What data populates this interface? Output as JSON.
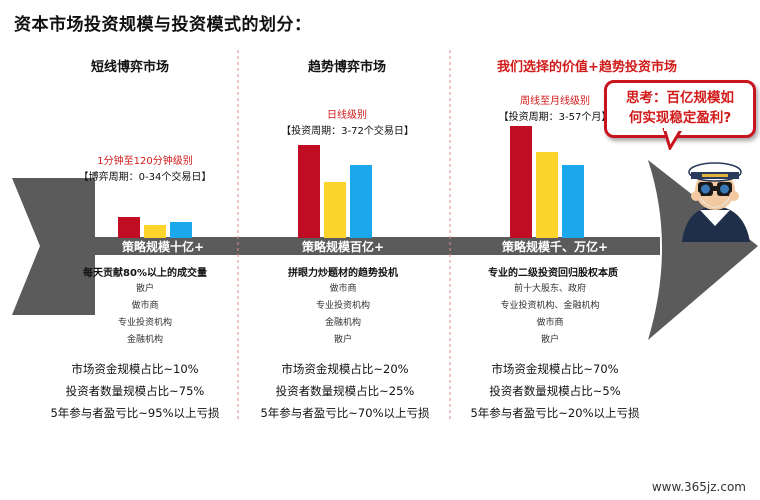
{
  "title": "资本市场投资规模与投资模式的划分：",
  "columns": [
    {
      "title": "短线博弈市场",
      "title_color": "black",
      "level": "1分钟至120分钟级别",
      "period": "【博弈周期：0-34个交易日】",
      "axis_label": "策略规模十亿+",
      "feature": "每天贡献80%以上的成交量",
      "participants": [
        "散户",
        "做市商",
        "专业投资机构",
        "金融机构"
      ],
      "stats": [
        "市场资金规模占比~10%",
        "投资者数量规模占比~75%",
        "5年参与者盈亏比~95%以上亏损"
      ]
    },
    {
      "title": "趋势博弈市场",
      "title_color": "black",
      "level": "日线级别",
      "period": "【投资周期：3-72个交易日】",
      "axis_label": "策略规模百亿+",
      "feature": "拼眼力炒题材的趋势投机",
      "participants": [
        "做市商",
        "专业投资机构",
        "金融机构",
        "散户"
      ],
      "stats": [
        "市场资金规模占比~20%",
        "投资者数量规模占比~25%",
        "5年参与者盈亏比~70%以上亏损"
      ]
    },
    {
      "title": "我们选择的价值+趋势投资市场",
      "title_color": "red",
      "level": "周线至月线级别",
      "period": "【投资周期：3-57个月】",
      "axis_label": "策略规模千、万亿+",
      "feature": "专业的二级投资回归股权本质",
      "participants": [
        "前十大股东、政府",
        "专业投资机构、金融机构",
        "做市商",
        "散户"
      ],
      "stats": [
        "市场资金规模占比~70%",
        "投资者数量规模占比~5%",
        "5年参与者盈亏比~20%以上亏损"
      ]
    }
  ],
  "bar_colors": [
    "#c00d23",
    "#fdd42c",
    "#1aa7ec"
  ],
  "bar_levels": [
    [
      0.4,
      0.25,
      0.31
    ],
    [
      0.93,
      0.56,
      0.73
    ],
    [
      1.0,
      0.77,
      0.65
    ]
  ],
  "callout": {
    "line1": "思考：百亿规模如",
    "line2": "何实现稳定盈利?"
  },
  "watermark": "www.365jz.com",
  "icons": {
    "mascot": "sailor-with-binoculars-icon"
  },
  "colors": {
    "arrow": "#5b5b5b",
    "accent_red": "#d11a1a"
  }
}
